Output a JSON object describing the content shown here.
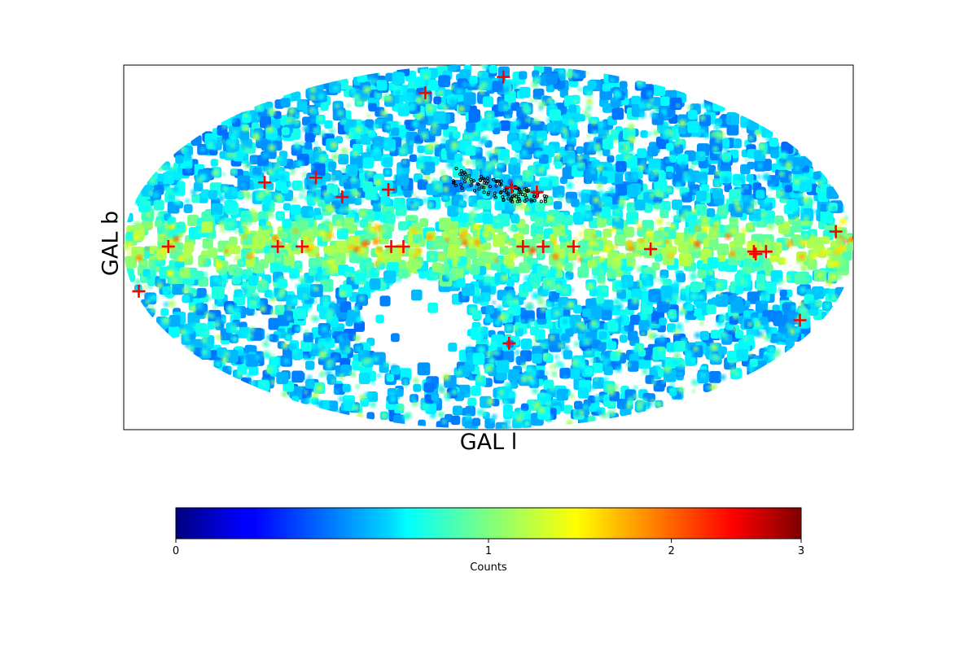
{
  "chart_data": {
    "type": "heatmap",
    "projection": "mollweide",
    "coordinate_frame": "galactic",
    "xlabel": "GAL l",
    "ylabel": "GAL b",
    "xlim_deg": [
      180,
      -180
    ],
    "ylim_deg": [
      -90,
      90
    ],
    "colormap": "jet",
    "colorbar": {
      "label": "Counts",
      "scale": "log1p",
      "range": [
        0,
        3
      ],
      "ticks": [
        "0",
        "1",
        "2",
        "3"
      ],
      "tick_values": [
        0,
        1,
        2,
        3
      ]
    },
    "background_structure": {
      "description_source": "galactic plane band of elevated counts at b≈0",
      "plane_level": 0.75,
      "disc_level": 0.35,
      "empty_region_center_deg": [
        40,
        -35
      ]
    },
    "markers": {
      "style": "plus",
      "color": "#ff0000",
      "points_l_b_deg": [
        [
          58,
          68
        ],
        [
          -20,
          78
        ],
        [
          118,
          26
        ],
        [
          92,
          28
        ],
        [
          75,
          20
        ],
        [
          52,
          23
        ],
        [
          -12,
          24
        ],
        [
          -25,
          22
        ],
        [
          158,
          0
        ],
        [
          104,
          0
        ],
        [
          92,
          0
        ],
        [
          48,
          0
        ],
        [
          42,
          0
        ],
        [
          -17,
          0
        ],
        [
          -27,
          0
        ],
        [
          -42,
          0
        ],
        [
          -80,
          -1
        ],
        [
          -131,
          -2
        ],
        [
          -132,
          -3
        ],
        [
          -172,
          6
        ],
        [
          178,
          -18
        ],
        [
          -12,
          -40
        ],
        [
          -168,
          -30
        ],
        [
          -137,
          -2
        ]
      ]
    },
    "overlay_points": {
      "style": "small-circle",
      "color": "#000000",
      "count": 110,
      "region_l_deg": [
        -30,
        20
      ],
      "region_b_deg": [
        18,
        33
      ]
    }
  }
}
